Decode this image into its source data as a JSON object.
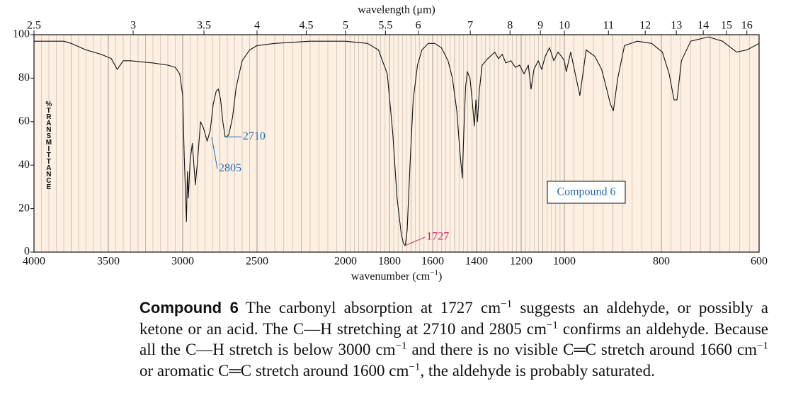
{
  "chart_data": {
    "type": "line",
    "x2_label": "wavelength (μm)",
    "xlabel_segments": [
      "wavenumber (cm",
      "−1",
      ")"
    ],
    "ylabel": "%TRANSMITTANCE",
    "box_label": "Compound 6",
    "xlim": [
      4000,
      600
    ],
    "xticks": [
      4000,
      3500,
      3000,
      2500,
      2000,
      1800,
      1600,
      1400,
      1200,
      1000,
      800,
      600
    ],
    "x2ticks": [
      2.5,
      3,
      3.5,
      4,
      4.5,
      5,
      5.5,
      6,
      7,
      8,
      9,
      10,
      11,
      12,
      13,
      14,
      15,
      16
    ],
    "ylim": [
      0,
      100
    ],
    "yticks": [
      0,
      20,
      40,
      60,
      80,
      100
    ],
    "x": [
      4000,
      3800,
      3750,
      3650,
      3550,
      3480,
      3440,
      3400,
      3350,
      3200,
      3100,
      3050,
      3020,
      3000,
      2990,
      2975,
      2968,
      2962,
      2950,
      2935,
      2915,
      2900,
      2880,
      2860,
      2835,
      2815,
      2795,
      2775,
      2760,
      2745,
      2730,
      2715,
      2705,
      2690,
      2665,
      2640,
      2600,
      2550,
      2500,
      2400,
      2200,
      2000,
      1900,
      1850,
      1810,
      1785,
      1765,
      1745,
      1735,
      1727,
      1718,
      1705,
      1690,
      1670,
      1650,
      1620,
      1590,
      1560,
      1530,
      1510,
      1490,
      1475,
      1465,
      1458,
      1450,
      1442,
      1430,
      1420,
      1410,
      1403,
      1396,
      1388,
      1375,
      1350,
      1318,
      1302,
      1285,
      1269,
      1246,
      1226,
      1207,
      1187,
      1167,
      1154,
      1141,
      1121,
      1105,
      1089,
      1069,
      1049,
      1030,
      1013,
      1000,
      996,
      987,
      968,
      955,
      937,
      923,
      915,
      905,
      899,
      890,
      876,
      850,
      820,
      798,
      784,
      774,
      768,
      759,
      740,
      704,
      675,
      646,
      625,
      600
    ],
    "series": [
      {
        "color": "#111111",
        "values": [
          97,
          97,
          96,
          93,
          91,
          89,
          84,
          88,
          88,
          87,
          86,
          85,
          82,
          72,
          45,
          14,
          37,
          25,
          42,
          50,
          31,
          42,
          60,
          57,
          51,
          56,
          68,
          74,
          75,
          70,
          60,
          53,
          53,
          54,
          62,
          76,
          88,
          93,
          95,
          96,
          97,
          97,
          96,
          93,
          82,
          55,
          25,
          8,
          4,
          3,
          10,
          40,
          70,
          86,
          93,
          96,
          96,
          94,
          88,
          80,
          65,
          45,
          34,
          55,
          76,
          83,
          80,
          70,
          58,
          70,
          60,
          74,
          86,
          89,
          92,
          89,
          91,
          87,
          88,
          85,
          86,
          82,
          86,
          75,
          84,
          88,
          84,
          90,
          94,
          88,
          92,
          90,
          88,
          83,
          92,
          72,
          93,
          90,
          84,
          77,
          68,
          65,
          80,
          95,
          97,
          96,
          92,
          82,
          70,
          70,
          88,
          97,
          99,
          97,
          92,
          93,
          96
        ]
      }
    ],
    "annotations": [
      {
        "x": 2710,
        "y": 53,
        "color": "#1f6db3"
      },
      {
        "x": 2805,
        "y": 53,
        "color": "#1f6db3"
      },
      {
        "x": 1727,
        "y": 3,
        "color": "#d4246c"
      }
    ]
  },
  "caption": {
    "label": "Compound 6",
    "segments": [
      "The carbonyl absorption at 1727 cm",
      "−1",
      " suggests an aldehyde, or possibly a ketone or an acid. The C—H stretching at 2710 and 2805 cm",
      "−1",
      " confirms an aldehyde. Because all the C—H stretch is below 3000 cm",
      "−1",
      " and there is no visible C═C stretch around 1660 cm",
      "−1",
      " or aromatic C═C stretch around 1600 cm",
      "−1",
      ", the aldehyde is probably saturated."
    ]
  }
}
